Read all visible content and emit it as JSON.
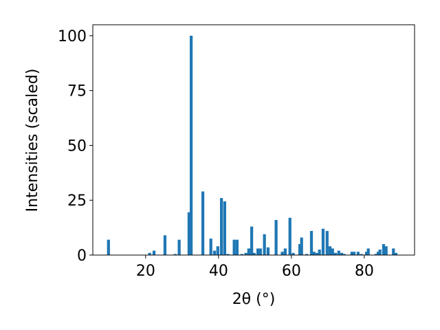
{
  "chart_data": {
    "type": "bar",
    "xlabel": "2θ (°)",
    "ylabel": "Intensities (scaled)",
    "x": [
      9.8,
      21.1,
      22.3,
      25.3,
      28.1,
      29.2,
      31.9,
      32.5,
      35.7,
      37.9,
      38.9,
      39.8,
      40.8,
      41.7,
      42.6,
      44.3,
      45.1,
      46.4,
      47.5,
      48.3,
      49.1,
      49.8,
      50.8,
      51.5,
      52.6,
      53.6,
      55.8,
      57.5,
      58.3,
      59.6,
      60.5,
      62.3,
      62.8,
      64.2,
      65.5,
      66.2,
      67.0,
      67.7,
      68.7,
      69.8,
      70.6,
      71.3,
      72.1,
      73.0,
      73.8,
      74.5,
      76.6,
      77.2,
      78.3,
      79.2,
      80.6,
      81.1,
      83.2,
      83.8,
      84.3,
      85.3,
      86.0,
      88.0,
      88.7
    ],
    "values": [
      7,
      1,
      2,
      9,
      0.5,
      7,
      19.5,
      100,
      29,
      7.5,
      2,
      4,
      26,
      24.5,
      0.5,
      7,
      7,
      0.5,
      1,
      3,
      13,
      1,
      3,
      3,
      9.5,
      3.5,
      16,
      1.5,
      3,
      17,
      1,
      5,
      8,
      0.5,
      11,
      1.5,
      1,
      2.5,
      12,
      11,
      4,
      3,
      1,
      2,
      1,
      0.5,
      1.5,
      1.5,
      1.5,
      0.5,
      1.5,
      3,
      0.5,
      1.5,
      2.5,
      5,
      4,
      3,
      1
    ],
    "color": "#1f77b4",
    "xlim": [
      5.5,
      93.8
    ],
    "xticks": [
      20,
      40,
      60,
      80
    ],
    "ylim": [
      0,
      105
    ],
    "yticks": [
      0,
      25,
      50,
      75,
      100
    ]
  }
}
